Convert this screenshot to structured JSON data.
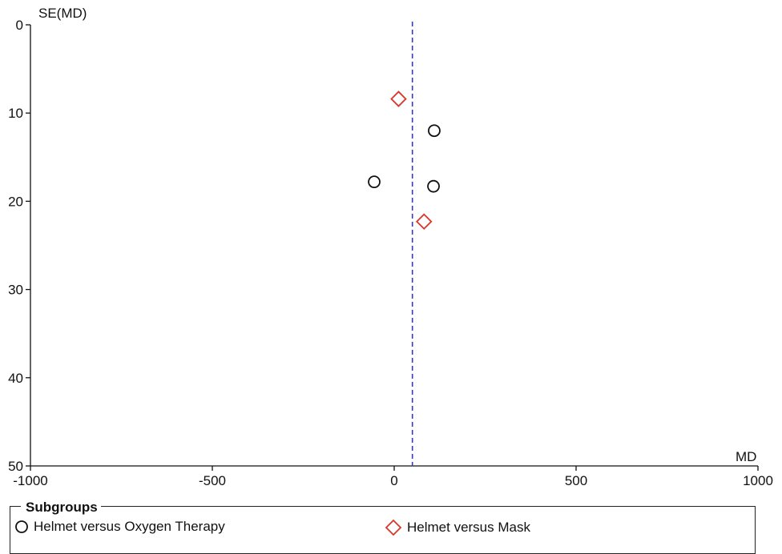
{
  "chart_data": {
    "type": "scatter",
    "title": "",
    "xlabel": "MD",
    "ylabel": "SE(MD)",
    "xlim": [
      -1000,
      1000
    ],
    "ylim": [
      0,
      50
    ],
    "y_inverted": true,
    "x_ticks": [
      -1000,
      -500,
      0,
      500,
      1000
    ],
    "x_tick_labels": [
      "-1000",
      "-500",
      "0",
      "500",
      "1000"
    ],
    "y_ticks": [
      0,
      10,
      20,
      30,
      40,
      50
    ],
    "y_tick_labels": [
      "0",
      "10",
      "20",
      "30",
      "40",
      "50"
    ],
    "pooled_effect_line": {
      "x": 50,
      "style": "dashed",
      "color": "#3a3ab8"
    },
    "series": [
      {
        "name": "Helmet versus Oxygen Therapy",
        "marker": "circle",
        "color": "#111111",
        "points": [
          {
            "x": 110,
            "y": 12.0
          },
          {
            "x": -55,
            "y": 17.8
          },
          {
            "x": 108,
            "y": 18.3
          }
        ]
      },
      {
        "name": "Helmet versus Mask",
        "marker": "diamond",
        "color": "#d9362b",
        "points": [
          {
            "x": 12,
            "y": 8.4
          },
          {
            "x": 82,
            "y": 22.3
          }
        ]
      }
    ],
    "legend": {
      "title": "Subgroups",
      "placement": "bottom"
    }
  }
}
